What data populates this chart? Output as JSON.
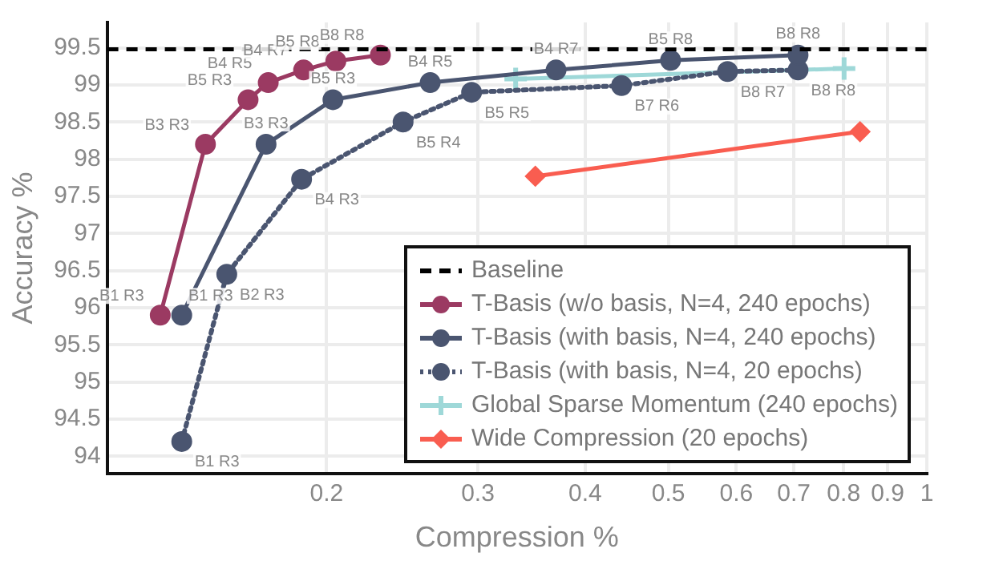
{
  "chart_data": {
    "type": "line",
    "xlabel": "Compression %",
    "ylabel": "Accuracy %",
    "log": "x",
    "xlim": [
      0.111,
      1
    ],
    "xticks": [
      0.2,
      0.3,
      0.4,
      0.5,
      0.6,
      0.7,
      0.8,
      0.9,
      1
    ],
    "ylim": [
      93.77,
      99.84
    ],
    "yticks": [
      94,
      94.5,
      95,
      95.5,
      96,
      96.5,
      97,
      97.5,
      98,
      98.5,
      99,
      99.5
    ],
    "grid": true,
    "legend": "bottom right",
    "series": [
      {
        "name": "Baseline",
        "color": "#000000",
        "x": [
          0.111,
          1
        ],
        "values": [
          99.48,
          99.48
        ],
        "marker": "none",
        "line_style": "dashed"
      },
      {
        "name": "T-Basis (w/o basis, N=4, 240 epochs)",
        "color": "#9b3a62",
        "x": [
          0.128,
          0.1445,
          0.162,
          0.171,
          0.188,
          0.205,
          0.231
        ],
        "values": [
          95.9,
          98.2,
          98.8,
          99.03,
          99.2,
          99.32,
          99.4
        ],
        "marker": "circle",
        "line_style": "solid"
      },
      {
        "name": "T-Basis (with basis, N=4, 240 epochs)",
        "color": "#4a5570",
        "x": [
          0.1356,
          0.17,
          0.2034,
          0.264,
          0.37,
          0.503,
          0.708
        ],
        "values": [
          95.9,
          98.2,
          98.8,
          99.03,
          99.2,
          99.33,
          99.4
        ],
        "marker": "circle",
        "line_style": "solid"
      },
      {
        "name": "T-Basis (with basis, N=4, 20 epochs)",
        "color": "#4a5570",
        "x": [
          0.1356,
          0.153,
          0.187,
          0.2455,
          0.295,
          0.441,
          0.586,
          0.708
        ],
        "values": [
          94.2,
          96.45,
          97.73,
          98.5,
          98.9,
          98.99,
          99.18,
          99.2
        ],
        "marker": "circle",
        "line_style": "dotted"
      },
      {
        "name": "Global Sparse Momentum (240 epochs)",
        "color": "#9ed8d8",
        "x": [
          0.332,
          0.801
        ],
        "values": [
          99.08,
          99.22
        ],
        "marker": "cross",
        "line_style": "solid"
      },
      {
        "name": "Wide Compression (20 epochs)",
        "color": "#f95d50",
        "x": [
          0.35,
          0.836
        ],
        "values": [
          97.77,
          98.37
        ],
        "marker": "diamond",
        "line_style": "solid"
      }
    ],
    "annotations": [
      {
        "text": "B1 R3",
        "x": 0.128,
        "y": 95.9
      },
      {
        "text": "B3 R3",
        "x": 0.1445,
        "y": 98.2
      },
      {
        "text": "B5 R3",
        "x": 0.162,
        "y": 98.8
      },
      {
        "text": "B4 R5",
        "x": 0.171,
        "y": 99.03
      },
      {
        "text": "B4 R7",
        "x": 0.188,
        "y": 99.2
      },
      {
        "text": "B5 R8",
        "x": 0.205,
        "y": 99.32
      },
      {
        "text": "B8 R8",
        "x": 0.231,
        "y": 99.4
      },
      {
        "text": "B1 R3",
        "x": 0.1356,
        "y": 95.9
      },
      {
        "text": "B3 R3",
        "x": 0.17,
        "y": 98.2
      },
      {
        "text": "B5 R3",
        "x": 0.2034,
        "y": 98.8
      },
      {
        "text": "B4 R5",
        "x": 0.264,
        "y": 99.03
      },
      {
        "text": "B4 R7",
        "x": 0.37,
        "y": 99.2
      },
      {
        "text": "B5 R8",
        "x": 0.503,
        "y": 99.33
      },
      {
        "text": "B8 R8",
        "x": 0.708,
        "y": 99.4
      },
      {
        "text": "B1 R3",
        "x": 0.1356,
        "y": 94.2
      },
      {
        "text": "B2 R3",
        "x": 0.153,
        "y": 96.45
      },
      {
        "text": "B4 R3",
        "x": 0.187,
        "y": 97.73
      },
      {
        "text": "B5 R4",
        "x": 0.2455,
        "y": 98.5
      },
      {
        "text": "B5 R5",
        "x": 0.295,
        "y": 98.9
      },
      {
        "text": "B7 R6",
        "x": 0.441,
        "y": 98.99
      },
      {
        "text": "B8 R7",
        "x": 0.586,
        "y": 99.18
      },
      {
        "text": "B8 R8",
        "x": 0.708,
        "y": 99.2
      }
    ]
  }
}
